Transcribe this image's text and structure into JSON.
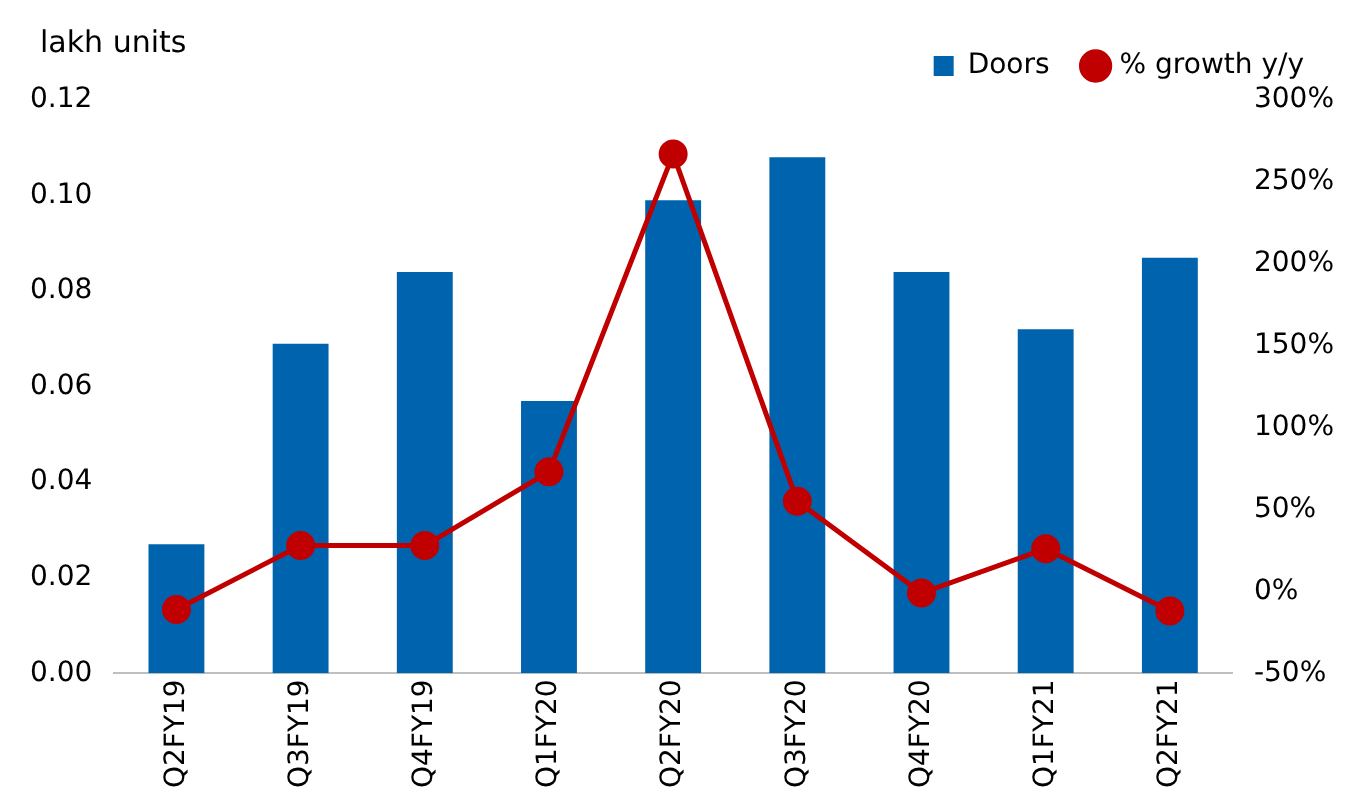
{
  "chart_data": {
    "type": "bar",
    "ylabel": "lakh units",
    "categories": [
      "Q2FY19",
      "Q3FY19",
      "Q4FY19",
      "Q1FY20",
      "Q2FY20",
      "Q3FY20",
      "Q4FY20",
      "Q1FY21",
      "Q2FY21"
    ],
    "series": [
      {
        "name": "Doors",
        "color": "#0063ad",
        "values": [
          0.027,
          0.069,
          0.084,
          0.057,
          0.099,
          0.108,
          0.084,
          0.072,
          0.087
        ]
      },
      {
        "name": "% growth y/y",
        "type": "line",
        "axis": "y2",
        "color": "#c00000",
        "values": [
          -11,
          28,
          28,
          73,
          267,
          55,
          -1,
          26,
          -12
        ]
      }
    ],
    "ylim": [
      0,
      0.12
    ],
    "yticks": [
      {
        "value": 0,
        "label": "0.00"
      },
      {
        "value": 0.02,
        "label": "0.02"
      },
      {
        "value": 0.04,
        "label": "0.04"
      },
      {
        "value": 0.06,
        "label": "0.06"
      },
      {
        "value": 0.08,
        "label": "0.08"
      },
      {
        "value": 0.1,
        "label": "0.10"
      },
      {
        "value": 0.12,
        "label": "0.12"
      }
    ],
    "y2lim": [
      -50,
      300
    ],
    "y2ticks": [
      {
        "value": -50,
        "label": "-50%"
      },
      {
        "value": 0,
        "label": "0%"
      },
      {
        "value": 50,
        "label": "50%"
      },
      {
        "value": 100,
        "label": "100%"
      },
      {
        "value": 150,
        "label": "150%"
      },
      {
        "value": 200,
        "label": "200%"
      },
      {
        "value": 250,
        "label": "250%"
      },
      {
        "value": 300,
        "label": "300%"
      }
    ],
    "grid": false,
    "legend": "top",
    "marker": "circle"
  }
}
